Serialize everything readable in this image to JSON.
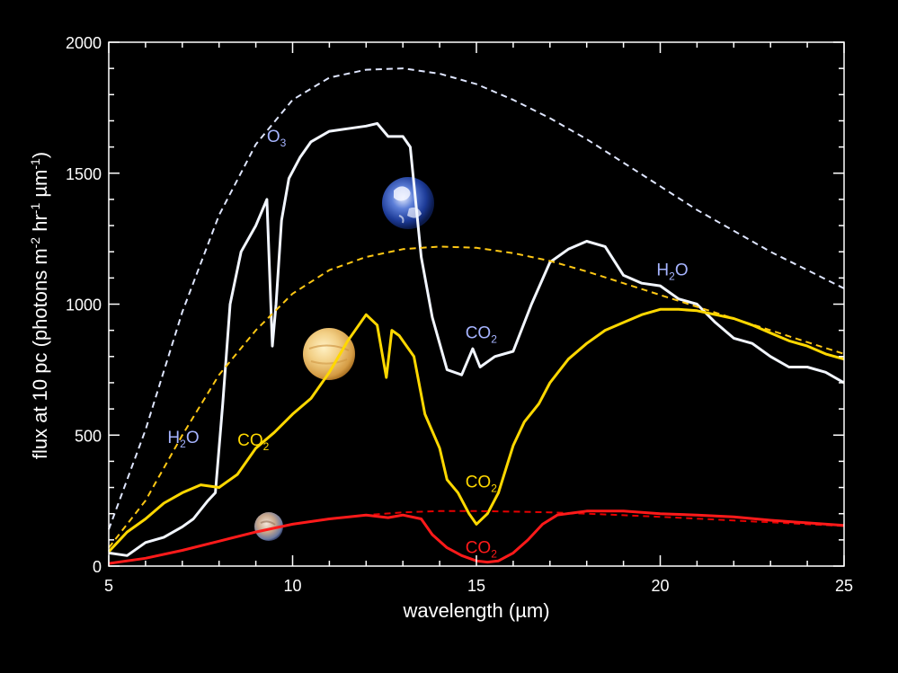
{
  "chart_data": {
    "type": "line",
    "xlabel": "wavelength (µm)",
    "ylabel": {
      "text": "flux at 10 pc (photons m",
      "sup1": "-2",
      "mid1": " hr",
      "sup2": "-1",
      "mid2": " µm",
      "sup3": "-1",
      "end": ")"
    },
    "xlim": [
      5,
      25
    ],
    "ylim": [
      0,
      2000
    ],
    "xticks": [
      5,
      10,
      15,
      20,
      25
    ],
    "yticks": [
      0,
      500,
      1000,
      1500,
      2000
    ],
    "grid": false,
    "colors": {
      "earth": "#f2f6ff",
      "venus": "#ffd800",
      "mars": "#ff1a1a",
      "earth_label": "#a6b4ff",
      "venus_label": "#ffd800",
      "mars_label": "#ff1a1a"
    },
    "series": [
      {
        "key": "earth_bb",
        "color": "#dfe6ff",
        "dashed": true,
        "x": [
          5,
          6,
          7,
          8,
          9,
          10,
          11,
          12,
          13,
          14,
          15,
          16,
          17,
          18,
          19,
          20,
          21,
          22,
          23,
          24,
          25
        ],
        "y": [
          140,
          520,
          970,
          1340,
          1610,
          1780,
          1865,
          1895,
          1900,
          1880,
          1840,
          1780,
          1710,
          1630,
          1540,
          1450,
          1360,
          1280,
          1200,
          1130,
          1060
        ]
      },
      {
        "key": "earth",
        "color": "#f2f6ff",
        "dashed": false,
        "x": [
          5,
          5.5,
          6,
          6.5,
          7,
          7.3,
          7.7,
          7.9,
          8.1,
          8.3,
          8.6,
          9,
          9.3,
          9.45,
          9.55,
          9.7,
          9.9,
          10.2,
          10.5,
          11,
          11.5,
          12,
          12.3,
          12.6,
          13,
          13.2,
          13.5,
          13.8,
          14.2,
          14.6,
          14.9,
          15.1,
          15.5,
          16,
          16.5,
          17,
          17.5,
          18,
          18.5,
          19,
          19.5,
          20,
          20.5,
          21,
          21.5,
          22,
          22.5,
          23,
          23.5,
          24,
          24.5,
          25
        ],
        "y": [
          50,
          40,
          90,
          110,
          150,
          180,
          250,
          280,
          620,
          1000,
          1200,
          1300,
          1400,
          840,
          1000,
          1320,
          1480,
          1560,
          1620,
          1660,
          1670,
          1680,
          1690,
          1640,
          1640,
          1600,
          1180,
          950,
          750,
          730,
          830,
          760,
          800,
          820,
          1000,
          1160,
          1210,
          1240,
          1220,
          1110,
          1080,
          1070,
          1020,
          1000,
          930,
          870,
          850,
          800,
          760,
          760,
          740,
          700
        ]
      },
      {
        "key": "venus_bb",
        "color": "#ffc814",
        "dashed": true,
        "x": [
          5,
          6,
          7,
          8,
          9,
          10,
          11,
          12,
          13,
          14,
          15,
          16,
          17,
          18,
          19,
          20,
          21,
          22,
          23,
          24,
          25
        ],
        "y": [
          70,
          250,
          500,
          730,
          900,
          1040,
          1130,
          1180,
          1210,
          1220,
          1215,
          1195,
          1165,
          1125,
          1080,
          1035,
          990,
          945,
          900,
          855,
          810
        ]
      },
      {
        "key": "venus",
        "color": "#ffd800",
        "dashed": false,
        "x": [
          5,
          5.5,
          6,
          6.5,
          7,
          7.5,
          8,
          8.5,
          9,
          9.5,
          10,
          10.5,
          11,
          11.5,
          12,
          12.3,
          12.55,
          12.7,
          12.9,
          13.3,
          13.6,
          14,
          14.2,
          14.5,
          14.8,
          15,
          15.3,
          15.6,
          16,
          16.3,
          16.7,
          17,
          17.5,
          18,
          18.5,
          19,
          19.5,
          20,
          20.5,
          21,
          21.5,
          22,
          22.5,
          23,
          23.5,
          24,
          24.5,
          25
        ],
        "y": [
          55,
          130,
          180,
          240,
          280,
          310,
          300,
          350,
          450,
          510,
          580,
          640,
          740,
          860,
          960,
          920,
          720,
          900,
          880,
          800,
          580,
          450,
          330,
          280,
          200,
          160,
          200,
          280,
          460,
          550,
          620,
          700,
          790,
          850,
          900,
          930,
          960,
          980,
          980,
          975,
          960,
          945,
          920,
          890,
          860,
          840,
          810,
          790
        ]
      },
      {
        "key": "mars_bb",
        "color": "#e60000",
        "dashed": true,
        "x": [
          5,
          6,
          7,
          8,
          9,
          10,
          11,
          12,
          13,
          14,
          15,
          16,
          17,
          18,
          19,
          20,
          21,
          22,
          23,
          24,
          25
        ],
        "y": [
          10,
          30,
          60,
          95,
          130,
          160,
          180,
          195,
          205,
          210,
          210,
          208,
          205,
          200,
          194,
          188,
          181,
          174,
          167,
          160,
          153
        ]
      },
      {
        "key": "mars",
        "color": "#ff1a1a",
        "dashed": false,
        "x": [
          5,
          6,
          7,
          8,
          9,
          10,
          11,
          12,
          12.6,
          13,
          13.5,
          13.8,
          14.2,
          14.6,
          15,
          15.3,
          15.6,
          16,
          16.4,
          16.8,
          17.2,
          18,
          19,
          20,
          21,
          22,
          23,
          24,
          25
        ],
        "y": [
          10,
          30,
          60,
          95,
          130,
          160,
          180,
          195,
          185,
          195,
          180,
          120,
          70,
          40,
          20,
          15,
          20,
          50,
          100,
          160,
          195,
          210,
          210,
          200,
          195,
          188,
          175,
          165,
          155
        ]
      }
    ],
    "annotations": [
      {
        "name": "label-o3",
        "base": "O",
        "sub": "3",
        "x": 9.3,
        "y": 1620,
        "colorKey": "earth_label"
      },
      {
        "name": "label-h2o-left",
        "base": "H",
        "sub": "2",
        "tail": "O",
        "x": 6.6,
        "y": 470,
        "colorKey": "earth_label"
      },
      {
        "name": "label-co2-earth",
        "base": "CO",
        "sub": "2",
        "x": 14.7,
        "y": 870,
        "colorKey": "earth_label"
      },
      {
        "name": "label-h2o-right",
        "base": "H",
        "sub": "2",
        "tail": "O",
        "x": 19.9,
        "y": 1110,
        "colorKey": "earth_label"
      },
      {
        "name": "label-co2-venus-left",
        "base": "CO",
        "sub": "2",
        "x": 8.5,
        "y": 460,
        "colorKey": "venus_label"
      },
      {
        "name": "label-co2-venus",
        "base": "CO",
        "sub": "2",
        "x": 14.7,
        "y": 300,
        "colorKey": "venus_label"
      },
      {
        "name": "label-co2-mars",
        "base": "CO",
        "sub": "2",
        "x": 14.7,
        "y": 50,
        "colorKey": "mars_label"
      }
    ]
  }
}
